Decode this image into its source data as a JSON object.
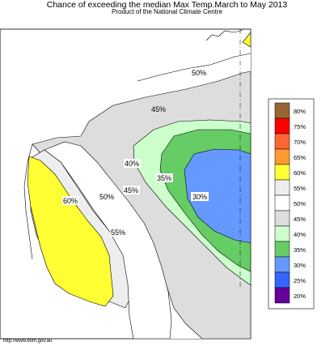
{
  "title": "Chance of exceeding the median Max Temp.March to May 2013",
  "subtitle": "Product of the National Climate Centre",
  "credit": "http://www.bom.gov.au",
  "legend": [
    {
      "label": "80%",
      "color": "#996633"
    },
    {
      "label": "75%",
      "color": "#ff0000"
    },
    {
      "label": "70%",
      "color": "#ff6633"
    },
    {
      "label": "65%",
      "color": "#ff9933"
    },
    {
      "label": "60%",
      "color": "#ffff33"
    },
    {
      "label": "55%",
      "color": "#eeeeee"
    },
    {
      "label": "50%",
      "color": "#ffffff"
    },
    {
      "label": "45%",
      "color": "#dddddd"
    },
    {
      "label": "40%",
      "color": "#ccffcc"
    },
    {
      "label": "35%",
      "color": "#66cc66"
    },
    {
      "label": "30%",
      "color": "#6699ff"
    },
    {
      "label": "25%",
      "color": "#3366ff"
    },
    {
      "label": "20%",
      "color": "#660099"
    }
  ],
  "contour_labels": {
    "c50_north": "50%",
    "c45_north": "45%",
    "c40": "40%",
    "c35": "35%",
    "c30": "30%",
    "c45_mid": "45%",
    "c50_mid": "50%",
    "c60": "60%",
    "c55": "55%"
  }
}
